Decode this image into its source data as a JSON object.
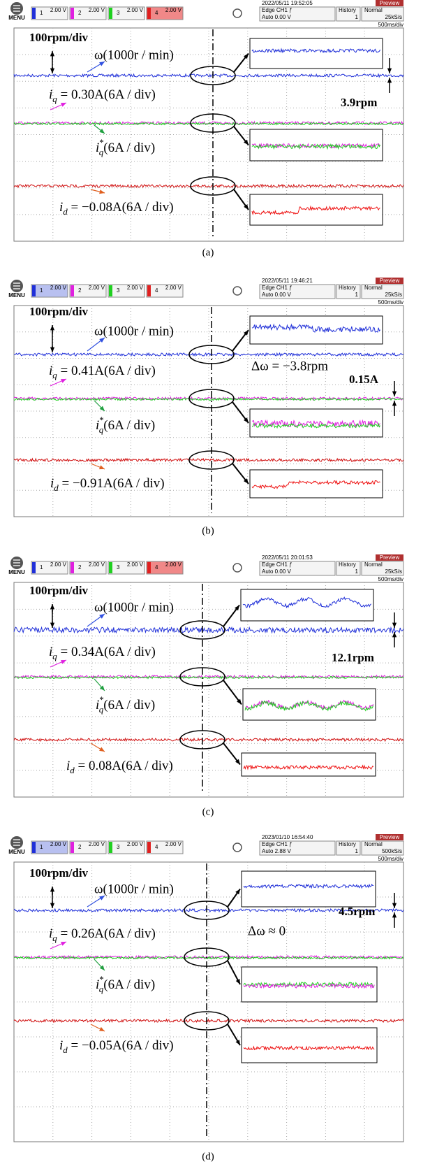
{
  "panels": [
    {
      "caption": "(a)",
      "header": {
        "menu": "MENU",
        "channels": [
          {
            "num": "1",
            "volt": "2.00 V"
          },
          {
            "num": "2",
            "volt": "2.00 V"
          },
          {
            "num": "3",
            "volt": "2.00 V"
          },
          {
            "num": "4",
            "volt": "2.00 V"
          }
        ],
        "date": "2022/05/11 19:52:05",
        "trigger": "Edge CH1 ƒ",
        "level": "Auto 0.00 V",
        "history": "History",
        "history_num": "1",
        "mode": "Normal",
        "rate": "25kS/s",
        "preview": "Preview",
        "timebase": "500ms/div"
      },
      "scale": "100rpm/div",
      "omega": "ω(1000r / min)",
      "iq": {
        "base": "i",
        "sub": "q",
        "rest": " = 0.30A(6A / div)"
      },
      "iqref": {
        "base": "i",
        "sup": "*",
        "sub": "q",
        "rest": "(6A / div)"
      },
      "id": {
        "base": "i",
        "sub": "d",
        "rest": " = −0.08A(6A / div)"
      },
      "ripple": "3.9rpm"
    },
    {
      "caption": "(b)",
      "header": {
        "menu": "MENU",
        "channels": [
          {
            "num": "1",
            "volt": "2.00 V"
          },
          {
            "num": "2",
            "volt": "2.00 V"
          },
          {
            "num": "3",
            "volt": "2.00 V"
          },
          {
            "num": "4",
            "volt": "2.00 V"
          }
        ],
        "date": "2022/05/11 19:46:21",
        "trigger": "Edge CH1 ƒ",
        "level": "Auto 0.00 V",
        "history": "History",
        "history_num": "1",
        "mode": "Normal",
        "rate": "25kS/s",
        "preview": "Preview",
        "timebase": "500ms/div"
      },
      "scale": "100rpm/div",
      "omega": "ω(1000r / min)",
      "iq": {
        "base": "i",
        "sub": "q",
        "rest": " = 0.41A(6A / div)"
      },
      "iqref": {
        "base": "i",
        "sup": "*",
        "sub": "q",
        "rest": "(6A / div)"
      },
      "id": {
        "base": "i",
        "sub": "d",
        "rest": " = −0.91A(6A / div)"
      },
      "delta": "Δω = −3.8rpm",
      "ripple": "0.15A"
    },
    {
      "caption": "(c)",
      "header": {
        "menu": "MENU",
        "channels": [
          {
            "num": "1",
            "volt": "2.00 V"
          },
          {
            "num": "2",
            "volt": "2.00 V"
          },
          {
            "num": "3",
            "volt": "2.00 V"
          },
          {
            "num": "4",
            "volt": "2.00 V"
          }
        ],
        "date": "2022/05/11 20:01:53",
        "trigger": "Edge CH1 ƒ",
        "level": "Auto 0.00 V",
        "history": "History",
        "history_num": "1",
        "mode": "Normal",
        "rate": "25kS/s",
        "preview": "Preview",
        "timebase": "500ms/div"
      },
      "scale": "100rpm/div",
      "omega": "ω(1000r / min)",
      "iq": {
        "base": "i",
        "sub": "q",
        "rest": " = 0.34A(6A / div)"
      },
      "iqref": {
        "base": "i",
        "sup": "*",
        "sub": "q",
        "rest": "(6A / div)"
      },
      "id": {
        "base": "i",
        "sub": "d",
        "rest": " = 0.08A(6A / div)"
      },
      "ripple": "12.1rpm"
    },
    {
      "caption": "(d)",
      "header": {
        "menu": "MENU",
        "channels": [
          {
            "num": "1",
            "volt": "2.00 V"
          },
          {
            "num": "2",
            "volt": "2.00 V"
          },
          {
            "num": "3",
            "volt": "2.00 V"
          },
          {
            "num": "4",
            "volt": "2.00 V"
          }
        ],
        "date": "2023/01/10 16:54:40",
        "trigger": "Edge CH1 ƒ",
        "level": "Auto 2.88 V",
        "history": "History",
        "history_num": "1",
        "mode": "Normal",
        "rate": "500kS/s",
        "preview": "Preview",
        "timebase": "500ms/div"
      },
      "scale": "100rpm/div",
      "omega": "ω(1000r / min)",
      "iq": {
        "base": "i",
        "sub": "q",
        "rest": " = 0.26A(6A / div)"
      },
      "iqref": {
        "base": "i",
        "sup": "*",
        "sub": "q",
        "rest": "(6A / div)"
      },
      "id": {
        "base": "i",
        "sub": "d",
        "rest": " = −0.05A(6A / div)"
      },
      "delta": "Δω ≈ 0",
      "ripple": "4.5rpm"
    }
  ]
}
